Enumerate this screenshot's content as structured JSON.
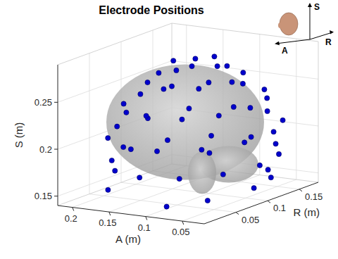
{
  "chart_data": {
    "type": "scatter3d",
    "title": "Electrode Positions",
    "xlabel": "A (m)",
    "ylabel": "R (m)",
    "zlabel": "S (m)",
    "annotations": [
      "S",
      "A",
      "R"
    ],
    "color": "#0000cc",
    "marker": "o",
    "grid": true,
    "xlim": [
      0.02,
      0.22
    ],
    "ylim": [
      0,
      0.18
    ],
    "zlim": [
      0.14,
      0.29
    ],
    "xticks": [
      0.05,
      0.1,
      0.15,
      0.2
    ],
    "yticks": [
      0.05,
      0.1,
      0.15
    ],
    "zticks": [
      0.15,
      0.2,
      0.25
    ],
    "x": [
      0.11,
      0.14,
      0.08,
      0.11,
      0.11,
      0.16,
      0.145,
      0.11,
      0.075,
      0.06,
      0.075,
      0.11,
      0.145,
      0.185,
      0.175,
      0.148,
      0.11,
      0.072,
      0.045,
      0.035,
      0.045,
      0.072,
      0.11,
      0.148,
      0.175,
      0.197,
      0.174,
      0.133,
      0.087,
      0.046,
      0.023,
      0.023,
      0.046,
      0.087,
      0.133,
      0.174,
      0.197,
      0.198,
      0.186,
      0.154,
      0.11,
      0.066,
      0.034,
      0.022,
      0.034,
      0.066,
      0.11,
      0.154,
      0.186,
      0.08,
      0.05,
      0.03,
      0.05,
      0.08,
      0.16,
      0.16
    ],
    "y": [
      0.09,
      0.09,
      0.09,
      0.12,
      0.06,
      0.09,
      0.125,
      0.14,
      0.125,
      0.09,
      0.055,
      0.04,
      0.055,
      0.09,
      0.128,
      0.155,
      0.165,
      0.155,
      0.128,
      0.09,
      0.052,
      0.025,
      0.015,
      0.025,
      0.052,
      0.113,
      0.154,
      0.177,
      0.177,
      0.154,
      0.113,
      0.067,
      0.026,
      0.003,
      0.003,
      0.026,
      0.067,
      0.09,
      0.134,
      0.166,
      0.178,
      0.166,
      0.134,
      0.09,
      0.046,
      0.014,
      0.002,
      0.014,
      0.046,
      0.17,
      0.14,
      0.09,
      0.04,
      0.01,
      0.17,
      0.01
    ],
    "z": [
      0.285,
      0.28,
      0.28,
      0.28,
      0.28,
      0.265,
      0.265,
      0.265,
      0.265,
      0.265,
      0.265,
      0.265,
      0.265,
      0.24,
      0.24,
      0.24,
      0.24,
      0.24,
      0.24,
      0.24,
      0.24,
      0.24,
      0.24,
      0.24,
      0.24,
      0.21,
      0.21,
      0.21,
      0.21,
      0.21,
      0.21,
      0.21,
      0.21,
      0.21,
      0.21,
      0.21,
      0.21,
      0.18,
      0.18,
      0.18,
      0.18,
      0.18,
      0.18,
      0.18,
      0.18,
      0.18,
      0.18,
      0.18,
      0.18,
      0.15,
      0.152,
      0.155,
      0.152,
      0.15,
      0.16,
      0.16
    ]
  }
}
